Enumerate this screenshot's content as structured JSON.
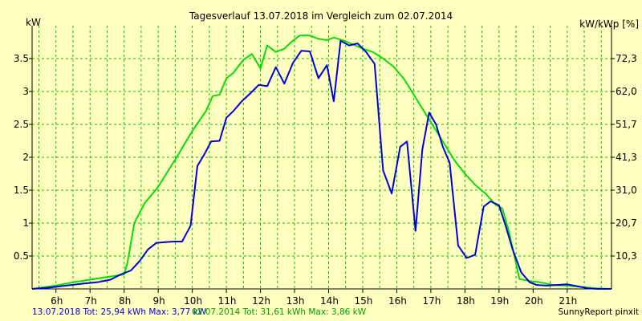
{
  "chart_data": {
    "type": "line",
    "title": "Tagesverlauf 13.07.2018 im Vergleich zum 02.07.2014",
    "ylabel_left": "kW",
    "ylabel_right": "kW/kWp [%]",
    "x_unit": "hour",
    "xlim": [
      5.3,
      22.3
    ],
    "ylim": [
      0,
      4.0
    ],
    "x_ticks": [
      6,
      7,
      8,
      9,
      10,
      11,
      12,
      13,
      14,
      15,
      16,
      17,
      18,
      19,
      20,
      21
    ],
    "x_tick_labels": [
      "6h",
      "7h",
      "8h",
      "9h",
      "10h",
      "11h",
      "12h",
      "13h",
      "14h",
      "15h",
      "16h",
      "17h",
      "18h",
      "19h",
      "20h",
      "21h"
    ],
    "y_ticks": [
      0.5,
      1,
      1.5,
      2,
      2.5,
      3,
      3.5
    ],
    "y_tick_labels": [
      "0.5",
      "1",
      "1.5",
      "2",
      "2.5",
      "3",
      "3.5"
    ],
    "y2_ticks": [
      0.5,
      1.0,
      1.5,
      2.0,
      2.5,
      3.0,
      3.5
    ],
    "y2_tick_labels": [
      "10,3",
      "20,7",
      "31,0",
      "41,3",
      "51,7",
      "62,0",
      "72,3"
    ],
    "grid": true,
    "series": [
      {
        "name": "13.07.2018",
        "color": "#0000dd",
        "x": [
          5.3,
          5.8,
          6.3,
          6.8,
          7.2,
          7.6,
          7.9,
          8.2,
          8.45,
          8.7,
          8.95,
          9.2,
          9.45,
          9.7,
          9.95,
          10.15,
          10.35,
          10.55,
          10.8,
          11.0,
          11.2,
          11.45,
          11.7,
          11.95,
          12.2,
          12.45,
          12.7,
          12.95,
          13.2,
          13.45,
          13.7,
          13.95,
          14.15,
          14.35,
          14.6,
          14.85,
          15.1,
          15.35,
          15.6,
          15.85,
          16.1,
          16.3,
          16.55,
          16.75,
          16.95,
          17.15,
          17.35,
          17.55,
          17.8,
          18.05,
          18.3,
          18.55,
          18.75,
          19.0,
          19.2,
          19.4,
          19.65,
          19.9,
          20.1,
          20.4,
          20.7,
          21.0,
          21.3,
          21.6,
          21.9,
          22.3
        ],
        "y": [
          0.0,
          0.02,
          0.05,
          0.08,
          0.1,
          0.14,
          0.22,
          0.28,
          0.42,
          0.6,
          0.7,
          0.71,
          0.72,
          0.72,
          0.96,
          1.87,
          2.04,
          2.24,
          2.25,
          2.6,
          2.7,
          2.85,
          2.97,
          3.1,
          3.08,
          3.37,
          3.12,
          3.43,
          3.62,
          3.61,
          3.2,
          3.4,
          2.85,
          3.77,
          3.7,
          3.73,
          3.6,
          3.42,
          1.8,
          1.45,
          2.16,
          2.24,
          0.88,
          2.12,
          2.68,
          2.5,
          2.16,
          1.92,
          0.66,
          0.47,
          0.52,
          1.25,
          1.33,
          1.27,
          0.95,
          0.6,
          0.25,
          0.1,
          0.06,
          0.05,
          0.06,
          0.07,
          0.04,
          0.01,
          0.0,
          0.0
        ]
      },
      {
        "name": "02.07.2014",
        "color": "#00e000",
        "x": [
          5.3,
          6.0,
          6.5,
          7.0,
          7.5,
          8.0,
          8.1,
          8.3,
          8.6,
          9.0,
          9.3,
          9.6,
          10.0,
          10.4,
          10.6,
          10.8,
          11.0,
          11.2,
          11.5,
          11.75,
          12.0,
          12.2,
          12.45,
          12.7,
          12.9,
          13.15,
          13.45,
          13.7,
          13.95,
          14.15,
          14.4,
          14.7,
          15.0,
          15.3,
          15.6,
          15.9,
          16.2,
          16.5,
          16.8,
          17.1,
          17.4,
          17.7,
          18.0,
          18.3,
          18.6,
          18.9,
          19.1,
          19.3,
          19.6,
          19.9,
          20.2,
          20.6,
          21.0,
          21.4,
          21.8,
          22.3
        ],
        "y": [
          0.0,
          0.05,
          0.1,
          0.14,
          0.18,
          0.22,
          0.4,
          1.0,
          1.3,
          1.55,
          1.8,
          2.05,
          2.4,
          2.7,
          2.93,
          2.95,
          3.2,
          3.28,
          3.48,
          3.57,
          3.35,
          3.7,
          3.6,
          3.65,
          3.75,
          3.85,
          3.85,
          3.8,
          3.78,
          3.82,
          3.78,
          3.72,
          3.65,
          3.6,
          3.5,
          3.38,
          3.2,
          2.95,
          2.7,
          2.45,
          2.2,
          1.95,
          1.75,
          1.58,
          1.45,
          1.28,
          1.22,
          0.85,
          0.15,
          0.12,
          0.1,
          0.06,
          0.05,
          0.03,
          0.01,
          0.0
        ]
      }
    ]
  },
  "footer": {
    "series1_summary": "13.07.2018 Tot: 25,94 kWh Max: 3,77 kW",
    "series2_summary": "02.07.2014 Tot: 31,61 kWh Max: 3,86 kW",
    "credit": "SunnyReport pinxit"
  },
  "colors": {
    "background": "#ffffc0",
    "grid": "#00c000",
    "axis": "#000000"
  }
}
